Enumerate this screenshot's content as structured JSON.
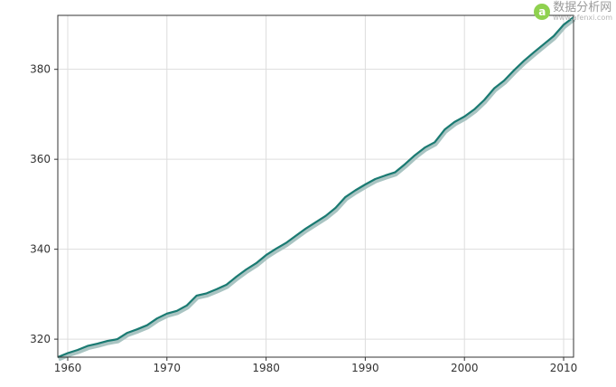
{
  "chart_data": {
    "type": "line",
    "title": "",
    "xlabel": "",
    "ylabel": "",
    "xlim": [
      1959,
      2011
    ],
    "ylim": [
      316,
      392
    ],
    "grid": true,
    "legend": "none",
    "x_ticks": [
      1960,
      1970,
      1980,
      1990,
      2000,
      2010
    ],
    "y_ticks": [
      320,
      340,
      360,
      380
    ],
    "x_tick_labels": [
      "1960",
      "1970",
      "1980",
      "1990",
      "2000",
      "2010"
    ],
    "y_tick_labels": [
      "320",
      "340",
      "360",
      "380"
    ],
    "colors": {
      "line": "#1a7a72",
      "shadow": "#a9c4c2",
      "grid": "#dddddd",
      "frame": "#333333"
    },
    "series": [
      {
        "x": [
          1959,
          1960,
          1961,
          1962,
          1963,
          1964,
          1965,
          1966,
          1967,
          1968,
          1969,
          1970,
          1971,
          1972,
          1973,
          1974,
          1975,
          1976,
          1977,
          1978,
          1979,
          1980,
          1981,
          1982,
          1983,
          1984,
          1985,
          1986,
          1987,
          1988,
          1989,
          1990,
          1991,
          1992,
          1993,
          1994,
          1995,
          1996,
          1997,
          1998,
          1999,
          2000,
          2001,
          2002,
          2003,
          2004,
          2005,
          2006,
          2007,
          2008,
          2009,
          2010,
          2011
        ],
        "values": [
          316.0,
          316.9,
          317.6,
          318.5,
          319.0,
          319.6,
          320.0,
          321.4,
          322.2,
          323.1,
          324.6,
          325.7,
          326.3,
          327.5,
          329.7,
          330.2,
          331.1,
          332.1,
          333.9,
          335.5,
          336.9,
          338.7,
          340.1,
          341.4,
          343.0,
          344.6,
          346.0,
          347.4,
          349.2,
          351.6,
          353.1,
          354.4,
          355.6,
          356.4,
          357.1,
          358.9,
          360.9,
          362.6,
          363.8,
          366.6,
          368.3,
          369.5,
          371.1,
          373.2,
          375.8,
          377.5,
          379.8,
          381.9,
          383.8,
          385.6,
          387.4,
          389.9,
          391.6
        ]
      }
    ]
  },
  "watermark": {
    "name": "数据分析网",
    "url": "www.afenxi.com",
    "logo_text": "a"
  }
}
